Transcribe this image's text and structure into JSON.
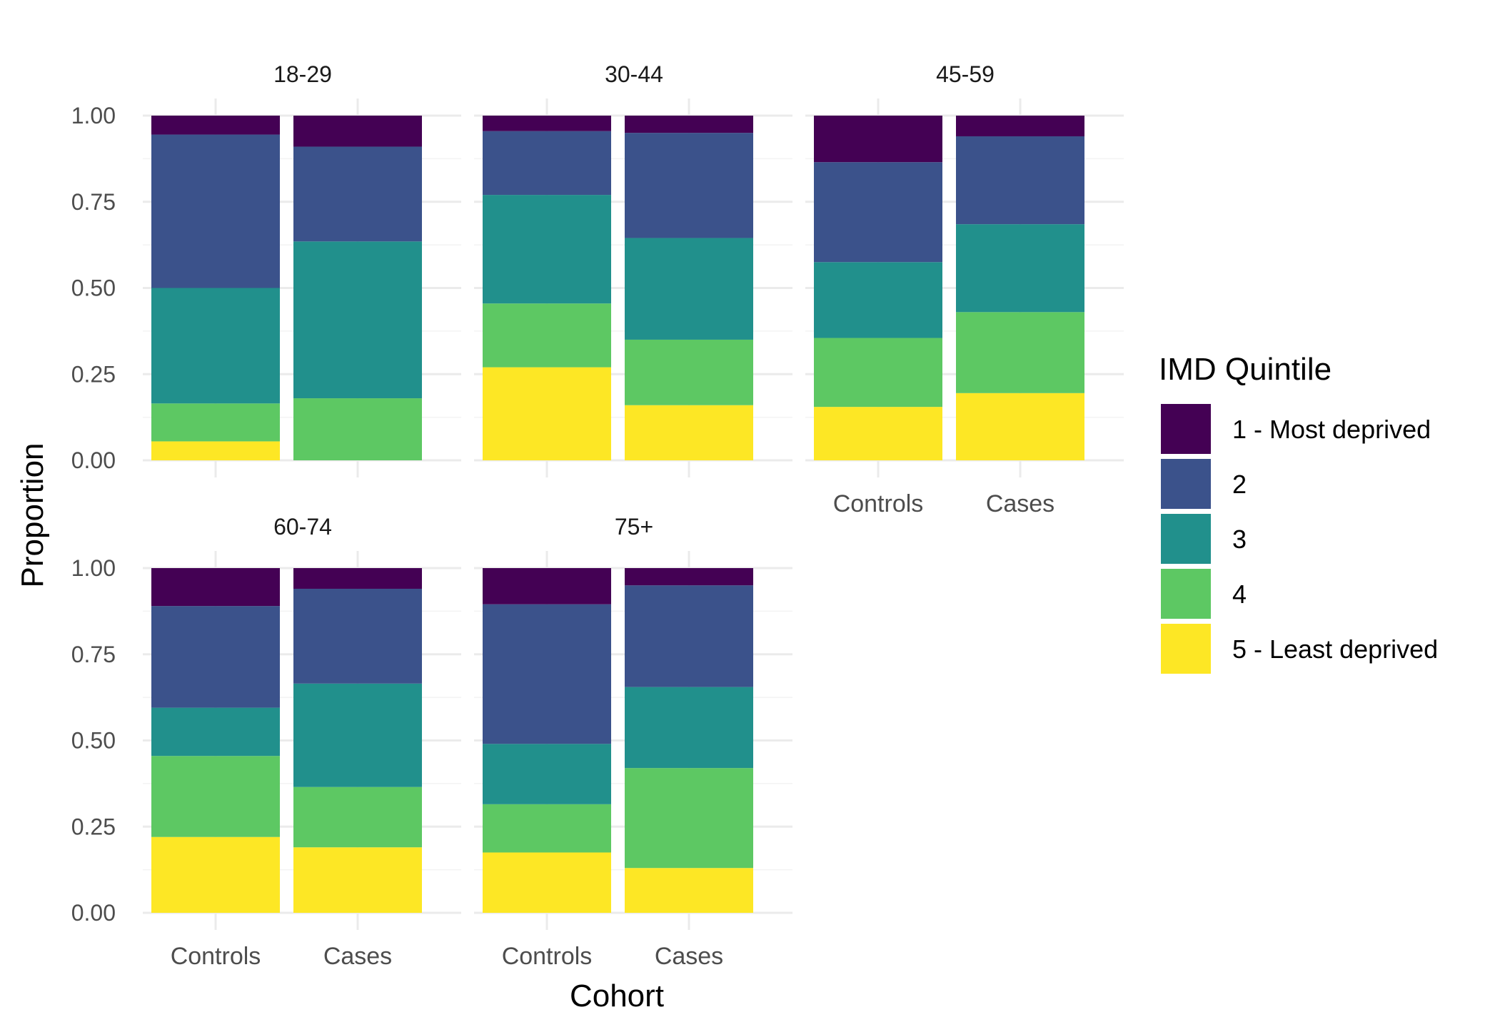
{
  "chart_data": {
    "type": "bar",
    "stacked": true,
    "normalized": true,
    "xlabel": "Cohort",
    "ylabel": "Proportion",
    "ylim": [
      0,
      1
    ],
    "yticks": [
      "0.00",
      "0.25",
      "0.50",
      "0.75",
      "1.00"
    ],
    "categories": [
      "Controls",
      "Cases"
    ],
    "legend": {
      "title": "IMD Quintile",
      "position": "right",
      "entries": [
        {
          "label": "1 - Most deprived",
          "color": "#440154"
        },
        {
          "label": "2",
          "color": "#3B528B"
        },
        {
          "label": "3",
          "color": "#21908C"
        },
        {
          "label": "4",
          "color": "#5DC863"
        },
        {
          "label": "5 - Least deprived",
          "color": "#FDE725"
        }
      ]
    },
    "facets": [
      {
        "title": "18-29",
        "bars": [
          {
            "category": "Controls",
            "values": [
              0.055,
              0.11,
              0.335,
              0.445,
              0.055
            ]
          },
          {
            "category": "Cases",
            "values": [
              0.0,
              0.18,
              0.455,
              0.275,
              0.09
            ]
          }
        ]
      },
      {
        "title": "30-44",
        "bars": [
          {
            "category": "Controls",
            "values": [
              0.27,
              0.185,
              0.315,
              0.185,
              0.045
            ]
          },
          {
            "category": "Cases",
            "values": [
              0.16,
              0.19,
              0.295,
              0.305,
              0.05
            ]
          }
        ]
      },
      {
        "title": "45-59",
        "bars": [
          {
            "category": "Controls",
            "values": [
              0.155,
              0.2,
              0.22,
              0.29,
              0.135
            ]
          },
          {
            "category": "Cases",
            "values": [
              0.195,
              0.235,
              0.255,
              0.255,
              0.06
            ]
          }
        ]
      },
      {
        "title": "60-74",
        "bars": [
          {
            "category": "Controls",
            "values": [
              0.22,
              0.235,
              0.14,
              0.295,
              0.11
            ]
          },
          {
            "category": "Cases",
            "values": [
              0.19,
              0.175,
              0.3,
              0.275,
              0.06
            ]
          }
        ]
      },
      {
        "title": "75+",
        "bars": [
          {
            "category": "Controls",
            "values": [
              0.175,
              0.14,
              0.175,
              0.405,
              0.105
            ]
          },
          {
            "category": "Cases",
            "values": [
              0.13,
              0.29,
              0.235,
              0.295,
              0.05
            ]
          }
        ]
      }
    ]
  }
}
